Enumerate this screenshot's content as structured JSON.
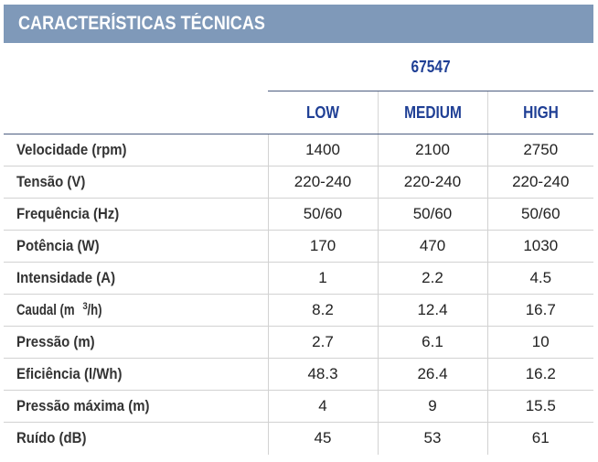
{
  "title": "CARACTERÍSTICAS TÉCNICAS",
  "model": "67547",
  "speeds": [
    "LOW",
    "MEDIUM",
    "HIGH"
  ],
  "rows": [
    {
      "label": "Velocidade (rpm)",
      "values": [
        "1400",
        "2100",
        "2750"
      ]
    },
    {
      "label": "Tensão (V)",
      "values": [
        "220-240",
        "220-240",
        "220-240"
      ]
    },
    {
      "label": "Frequência (Hz)",
      "values": [
        "50/60",
        "50/60",
        "50/60"
      ]
    },
    {
      "label": "Potência (W)",
      "values": [
        "170",
        "470",
        "1030"
      ]
    },
    {
      "label": "Intensidade (A)",
      "values": [
        "1",
        "2.2",
        "4.5"
      ]
    },
    {
      "label_pre": "Caudal (m",
      "label_sup": "3",
      "label_post": "/h)",
      "values": [
        "8.2",
        "12.4",
        "16.7"
      ]
    },
    {
      "label": "Pressão (m)",
      "values": [
        "2.7",
        "6.1",
        "10"
      ]
    },
    {
      "label": "Eficiência (l/Wh)",
      "values": [
        "48.3",
        "26.4",
        "16.2"
      ]
    },
    {
      "label": "Pressão máxima (m)",
      "values": [
        "4",
        "9",
        "15.5"
      ]
    },
    {
      "label": "Ruído (dB)",
      "values": [
        "45",
        "53",
        "61"
      ]
    }
  ],
  "colors": {
    "title_bar": "#7f99b9",
    "header_text": "#1f3f95"
  }
}
